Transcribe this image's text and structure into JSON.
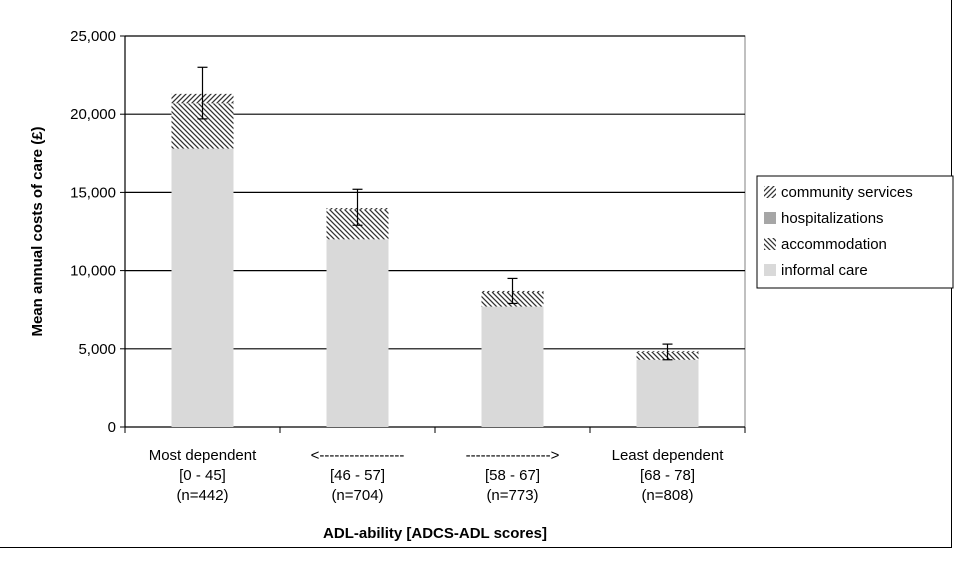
{
  "chart_data": {
    "type": "bar",
    "stacked": true,
    "title": "",
    "ylabel": "Mean annual costs of care (£)",
    "xlabel": "ADL-ability [ADCS-ADL scores]",
    "ylim": [
      0,
      25000
    ],
    "yticks": [
      "0",
      "5,000",
      "10,000",
      "15,000",
      "20,000",
      "25,000"
    ],
    "ytick_values": [
      0,
      5000,
      10000,
      15000,
      20000,
      25000
    ],
    "grid": "horizontal",
    "legend_position": "right",
    "categories": [
      [
        "Most dependent",
        "[0 - 45]",
        "(n=442)"
      ],
      [
        "<-----------------",
        "[46 - 57]",
        "(n=704)"
      ],
      [
        "----------------->",
        "[58 - 67]",
        "(n=773)"
      ],
      [
        "Least dependent",
        "[68 - 78]",
        "(n=808)"
      ]
    ],
    "series": [
      {
        "name": "informal care",
        "values": [
          17800,
          12000,
          7700,
          4300
        ],
        "pattern": "solid",
        "color": "#d9d9d9"
      },
      {
        "name": "accommodation",
        "values": [
          2900,
          1900,
          900,
          500
        ],
        "pattern": "hatch-backslash",
        "color": "#333333"
      },
      {
        "name": "hospitalizations",
        "values": [
          0,
          0,
          0,
          0
        ],
        "pattern": "solid",
        "color": "#a6a6a6"
      },
      {
        "name": "community services",
        "values": [
          600,
          100,
          100,
          50
        ],
        "pattern": "hatch-slash",
        "color": "#333333"
      }
    ],
    "legend_order": [
      "community services",
      "hospitalizations",
      "accommodation",
      "informal care"
    ],
    "error_bars": [
      {
        "low": 19700,
        "high": 23000
      },
      {
        "low": 12900,
        "high": 15200
      },
      {
        "low": 7900,
        "high": 9500
      },
      {
        "low": 4300,
        "high": 5300
      }
    ]
  }
}
